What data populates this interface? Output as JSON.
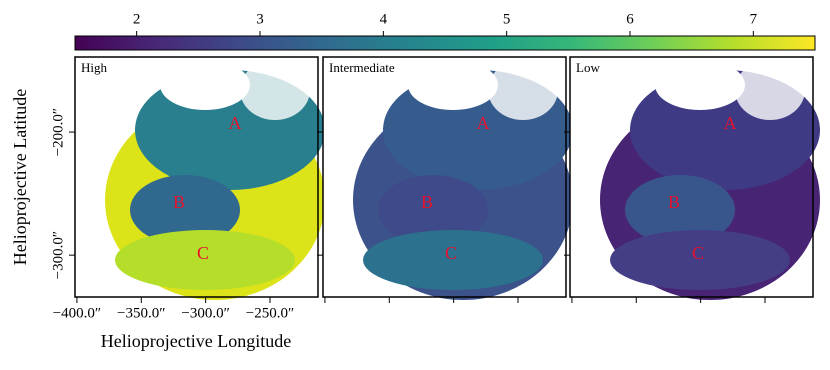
{
  "chart_data": {
    "type": "image",
    "xlabel": "Helioprojective Longitude",
    "ylabel": "Helioprojective Latitude",
    "xlim": [
      -401.5,
      -212.7
    ],
    "ylim": [
      -334,
      -139
    ],
    "xticks": [
      {
        "value": -400,
        "label": "−400.0″"
      },
      {
        "value": -350,
        "label": "−350.0″"
      },
      {
        "value": -300,
        "label": "−300.0″"
      },
      {
        "value": -250,
        "label": "−250.0″"
      }
    ],
    "yticks": [
      {
        "value": -200,
        "label": "−200.0″"
      },
      {
        "value": -300,
        "label": "−300.0″"
      }
    ],
    "colorbar": {
      "lim": [
        1.5,
        7.5
      ],
      "ticks": [
        2,
        3,
        4,
        5,
        6,
        7
      ]
    },
    "panels": [
      {
        "title": "High",
        "annotations": [
          "A",
          "B",
          "C"
        ]
      },
      {
        "title": "Intermediate",
        "annotations": [
          "A",
          "B",
          "C"
        ]
      },
      {
        "title": "Low",
        "annotations": [
          "A",
          "B",
          "C"
        ]
      }
    ]
  }
}
